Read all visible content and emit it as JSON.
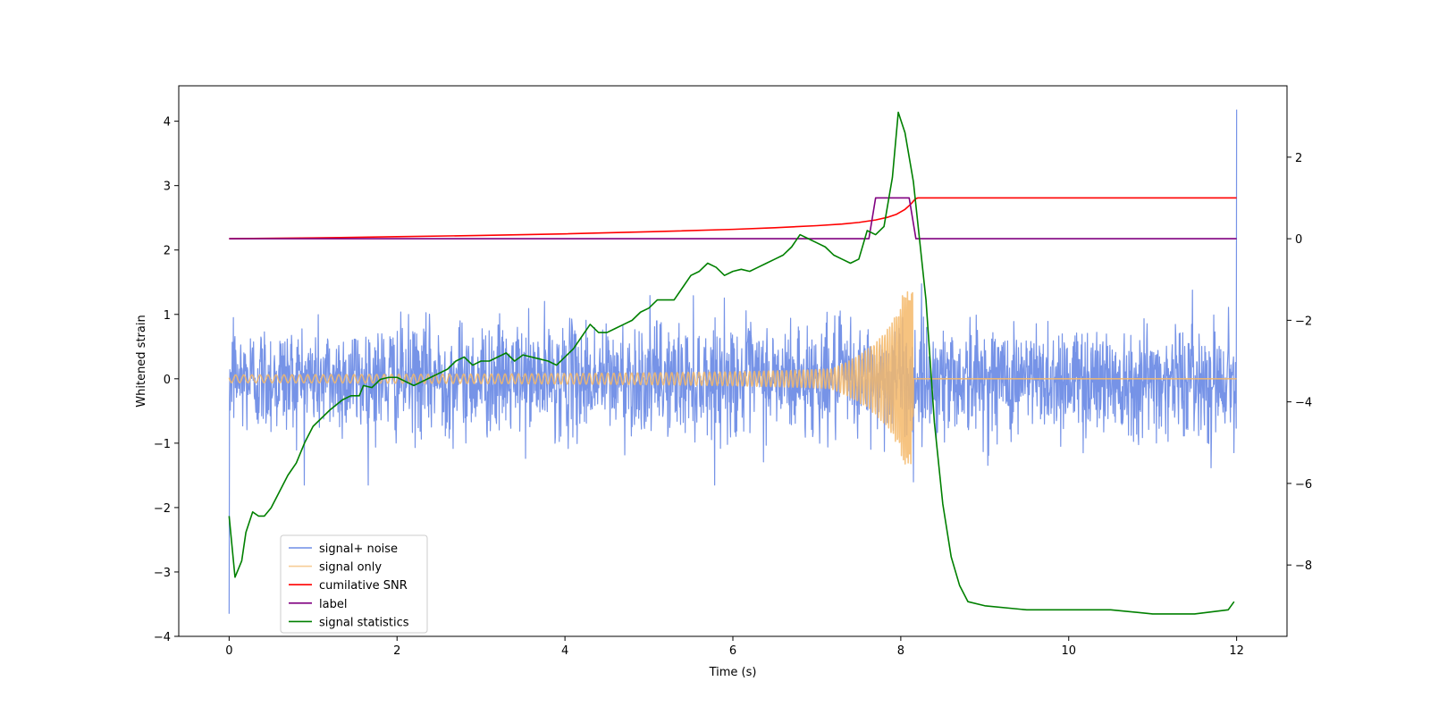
{
  "chart_data": {
    "type": "line",
    "title": "",
    "xlabel": "Time (s)",
    "ylabel": "Whitened strain",
    "y2label": "",
    "xlim": [
      -0.6,
      12.6
    ],
    "ylim": [
      -4.0,
      4.55
    ],
    "y2lim": [
      -9.75,
      3.75
    ],
    "x_ticks": [
      0,
      2,
      4,
      6,
      8,
      10,
      12
    ],
    "x_tick_labels": [
      "0",
      "2",
      "4",
      "6",
      "8",
      "10",
      "12"
    ],
    "y_ticks": [
      -4,
      -3,
      -2,
      -1,
      0,
      1,
      2,
      3,
      4
    ],
    "y_tick_labels": [
      "−4",
      "−3",
      "−2",
      "−1",
      "0",
      "1",
      "2",
      "3",
      "4"
    ],
    "y2_ticks": [
      -8,
      -6,
      -4,
      -2,
      0,
      2
    ],
    "y2_tick_labels": [
      "−8",
      "−6",
      "−4",
      "−2",
      "0",
      "2"
    ],
    "grid": false,
    "legend_position": "lower-left",
    "legend": [
      "signal+ noise",
      "signal only",
      "cumilative SNR",
      "label",
      "signal statistics"
    ],
    "series": [
      {
        "name": "signal+ noise",
        "axis": "left",
        "color": "#6f8de6",
        "kind": "noise",
        "x_range": [
          0,
          12
        ],
        "amplitude_std": 0.43,
        "extremes": [
          [
            0.0,
            -3.65
          ],
          [
            12.0,
            4.18
          ],
          [
            0.05,
            0.95
          ],
          [
            8.15,
            1.65
          ],
          [
            8.15,
            -1.6
          ]
        ]
      },
      {
        "name": "signal only",
        "axis": "left",
        "color": "#f4b86a",
        "kind": "chirp",
        "x_range": [
          0,
          12
        ],
        "merger_time": 8.15,
        "peak_amplitude": 1.35
      },
      {
        "name": "cumilative SNR",
        "axis": "right",
        "color": "#ff0000",
        "x": [
          0,
          1,
          2,
          3,
          4,
          5,
          6,
          6.5,
          7,
          7.3,
          7.5,
          7.7,
          7.85,
          7.95,
          8.05,
          8.12,
          8.17,
          8.2,
          12
        ],
        "values": [
          0,
          0.02,
          0.05,
          0.08,
          0.12,
          0.17,
          0.23,
          0.27,
          0.32,
          0.36,
          0.4,
          0.46,
          0.53,
          0.6,
          0.72,
          0.85,
          0.97,
          1.0,
          1.0
        ]
      },
      {
        "name": "label",
        "axis": "right",
        "color": "#800080",
        "x": [
          0,
          7.62,
          7.7,
          8.1,
          8.18,
          12
        ],
        "values": [
          0,
          0,
          1,
          1,
          0,
          0
        ]
      },
      {
        "name": "signal statistics",
        "axis": "right",
        "color": "#008000",
        "x": [
          0,
          0.07,
          0.15,
          0.2,
          0.28,
          0.35,
          0.42,
          0.5,
          0.6,
          0.7,
          0.8,
          0.9,
          1.0,
          1.2,
          1.35,
          1.45,
          1.55,
          1.6,
          1.7,
          1.8,
          1.9,
          2.0,
          2.1,
          2.2,
          2.3,
          2.4,
          2.5,
          2.6,
          2.7,
          2.8,
          2.9,
          3.0,
          3.1,
          3.3,
          3.4,
          3.5,
          3.6,
          3.8,
          3.9,
          4.0,
          4.1,
          4.2,
          4.3,
          4.4,
          4.5,
          4.6,
          4.7,
          4.8,
          4.9,
          5.0,
          5.1,
          5.3,
          5.4,
          5.5,
          5.6,
          5.7,
          5.8,
          5.9,
          6.0,
          6.1,
          6.2,
          6.3,
          6.4,
          6.5,
          6.6,
          6.7,
          6.8,
          6.9,
          7.0,
          7.1,
          7.2,
          7.3,
          7.4,
          7.5,
          7.6,
          7.7,
          7.8,
          7.9,
          7.97,
          8.05,
          8.15,
          8.3,
          8.4,
          8.5,
          8.6,
          8.7,
          8.8,
          9.0,
          9.5,
          10.0,
          10.5,
          11.0,
          11.5,
          11.9,
          11.97
        ],
        "values": [
          -6.8,
          -8.3,
          -7.9,
          -7.2,
          -6.7,
          -6.8,
          -6.8,
          -6.6,
          -6.2,
          -5.8,
          -5.5,
          -5.0,
          -4.6,
          -4.2,
          -3.95,
          -3.85,
          -3.85,
          -3.6,
          -3.65,
          -3.45,
          -3.4,
          -3.4,
          -3.5,
          -3.6,
          -3.5,
          -3.4,
          -3.3,
          -3.2,
          -3.0,
          -2.9,
          -3.1,
          -3.0,
          -3.0,
          -2.8,
          -3.0,
          -2.85,
          -2.9,
          -3.0,
          -3.1,
          -2.9,
          -2.7,
          -2.4,
          -2.1,
          -2.3,
          -2.3,
          -2.2,
          -2.1,
          -2.0,
          -1.8,
          -1.7,
          -1.5,
          -1.5,
          -1.2,
          -0.9,
          -0.8,
          -0.6,
          -0.7,
          -0.9,
          -0.8,
          -0.75,
          -0.8,
          -0.7,
          -0.6,
          -0.5,
          -0.4,
          -0.2,
          0.1,
          0.0,
          -0.1,
          -0.2,
          -0.4,
          -0.5,
          -0.6,
          -0.5,
          0.2,
          0.1,
          0.3,
          1.5,
          3.1,
          2.6,
          1.4,
          -1.5,
          -4.5,
          -6.5,
          -7.8,
          -8.5,
          -8.9,
          -9.0,
          -9.1,
          -9.1,
          -9.1,
          -9.2,
          -9.2,
          -9.1,
          -8.9
        ]
      }
    ]
  }
}
